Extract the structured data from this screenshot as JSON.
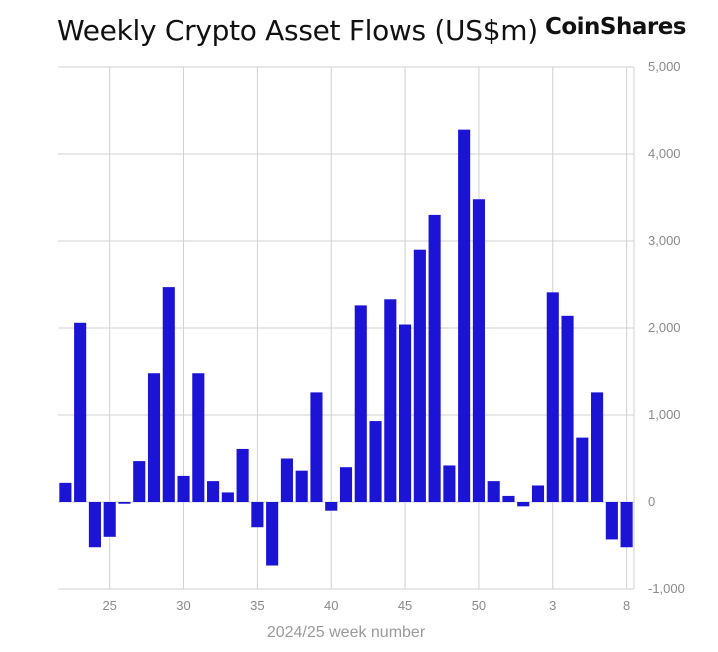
{
  "header": {
    "title": "Weekly Crypto Asset Flows (US$m)",
    "brand": "CoinShares"
  },
  "chart_data": {
    "type": "bar",
    "title": "Weekly Crypto Asset Flows (US$m)",
    "xlabel": "2024/25 week number",
    "ylabel": "",
    "ylim": [
      -1000,
      5000
    ],
    "yticks": [
      -1000,
      0,
      1000,
      2000,
      3000,
      4000,
      5000
    ],
    "ytick_labels": [
      "-1,000",
      "0",
      "1,000",
      "2,000",
      "3,000",
      "4,000",
      "5,000"
    ],
    "xtick_labels": [
      "25",
      "30",
      "35",
      "40",
      "45",
      "50",
      "3",
      "8"
    ],
    "xtick_indices": [
      3,
      8,
      13,
      18,
      23,
      28,
      33,
      38
    ],
    "grid": true,
    "bar_color": "#1c14d4",
    "categories": [
      "22",
      "23",
      "24",
      "25",
      "26",
      "27",
      "28",
      "29",
      "30",
      "31",
      "32",
      "33",
      "34",
      "35",
      "36",
      "37",
      "38",
      "39",
      "40",
      "41",
      "42",
      "43",
      "44",
      "45",
      "46",
      "47",
      "48",
      "49",
      "50",
      "51",
      "52",
      "1",
      "2",
      "3",
      "4",
      "5",
      "6",
      "7",
      "8"
    ],
    "values": [
      220,
      2060,
      -520,
      -400,
      -20,
      470,
      1480,
      2470,
      300,
      1480,
      240,
      110,
      610,
      -290,
      -730,
      500,
      360,
      1260,
      -100,
      400,
      2260,
      930,
      2330,
      2040,
      2900,
      3300,
      420,
      4280,
      3480,
      240,
      70,
      -50,
      190,
      2410,
      2140,
      740,
      1260,
      -430,
      -520
    ]
  }
}
